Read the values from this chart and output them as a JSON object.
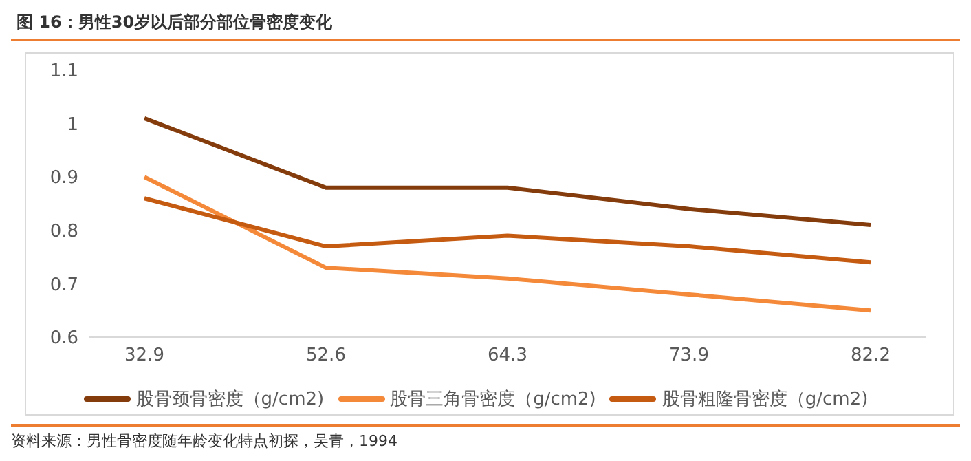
{
  "chart_data": {
    "type": "line",
    "title": "图 16：男性30岁以后部分部位骨密度变化",
    "annotations": [
      "资料来源：男性骨密度随年龄变化特点初探，吴青，1994"
    ],
    "categories": [
      "32.9",
      "52.6",
      "64.3",
      "73.9",
      "82.2"
    ],
    "series": [
      {
        "name": "股骨颈骨密度（g/cm2)",
        "color": "#843c0c",
        "values": [
          1.01,
          0.88,
          0.88,
          0.84,
          0.81
        ]
      },
      {
        "name": "股骨三角骨密度（g/cm2)",
        "color": "#f4893a",
        "values": [
          0.9,
          0.73,
          0.71,
          0.68,
          0.65
        ]
      },
      {
        "name": "股骨粗隆骨密度（g/cm2)",
        "color": "#c55a11",
        "values": [
          0.86,
          0.77,
          0.79,
          0.77,
          0.74
        ]
      }
    ],
    "ylim": [
      0.6,
      1.1
    ],
    "yticks": [
      0.6,
      0.7,
      0.8,
      0.9,
      1,
      1.1
    ],
    "grid": false,
    "legend": "bottom",
    "marker": "none",
    "line_style": "solid"
  }
}
